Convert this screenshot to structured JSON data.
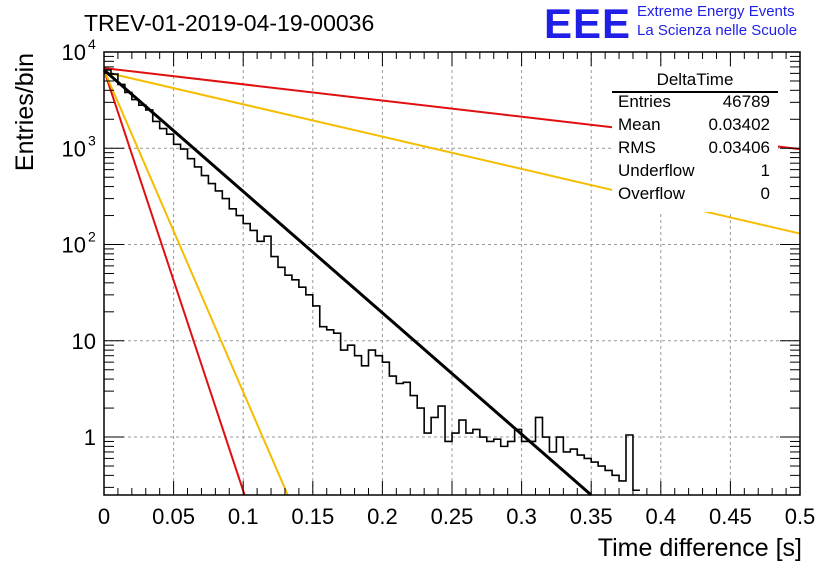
{
  "header": {
    "title": "TREV-01-2019-04-19-00036",
    "logo_text": "EEE",
    "logo_line1": "Extreme Energy Events",
    "logo_line2": "La Scienza nelle Scuole"
  },
  "stats": {
    "title": "DeltaTime",
    "rows": [
      {
        "key": "Entries",
        "value": "46789"
      },
      {
        "key": "Mean",
        "value": "0.03402"
      },
      {
        "key": "RMS",
        "value": "0.03406"
      },
      {
        "key": "Underflow",
        "value": "1"
      },
      {
        "key": "Overflow",
        "value": "0"
      }
    ]
  },
  "colors": {
    "histogram": "#000000",
    "fit": "#000000",
    "red_lines": "#e01010",
    "yellow_lines": "#f5bd00",
    "grid": "#9a9a9a"
  },
  "chart_data": {
    "type": "line",
    "xlabel": "Time difference [s]",
    "ylabel": "Entries/bin",
    "xlim": [
      0,
      0.5
    ],
    "ylim": [
      0.25,
      10000
    ],
    "yscale": "log",
    "grid": true,
    "xticks": [
      "0",
      "0.05",
      "0.1",
      "0.15",
      "0.2",
      "0.25",
      "0.3",
      "0.35",
      "0.4",
      "0.45",
      "0.5"
    ],
    "yticks": [
      {
        "value": 1,
        "label": "1"
      },
      {
        "value": 10,
        "label": "10"
      },
      {
        "value": 100,
        "label": "10",
        "exp": "2"
      },
      {
        "value": 1000,
        "label": "10",
        "exp": "3"
      },
      {
        "value": 10000,
        "label": "10",
        "exp": "4"
      }
    ],
    "histogram": {
      "bin_width": 0.005,
      "values": [
        6500,
        5900,
        4600,
        3800,
        3200,
        2800,
        2500,
        1900,
        1600,
        1400,
        1100,
        980,
        780,
        640,
        520,
        430,
        360,
        300,
        235,
        200,
        165,
        140,
        108,
        122,
        75,
        58,
        48,
        43,
        36,
        30,
        23,
        14,
        13,
        12,
        8,
        9,
        7,
        5.5,
        8,
        7,
        6,
        4.3,
        3.6,
        3.7,
        2.7,
        2,
        1.1,
        1.6,
        2.1,
        0.9,
        1.1,
        1.5,
        1.1,
        1.2,
        1.0,
        0.9,
        0.95,
        0.8,
        0.9,
        1.2,
        0.9,
        0.9,
        1.6,
        1.0,
        0.7,
        1.0,
        0.7,
        0.75,
        0.65,
        0.6,
        0.55,
        0.5,
        0.45,
        0.4,
        0.35,
        1.05,
        0.28
      ]
    },
    "fit_line": {
      "x": [
        0,
        0.35
      ],
      "y": [
        6500,
        0.25
      ]
    },
    "reference_lines": [
      {
        "color": "red",
        "x": [
          0,
          0.5
        ],
        "y": [
          6800,
          980
        ]
      },
      {
        "color": "yellow",
        "x": [
          0,
          0.5
        ],
        "y": [
          6200,
          130
        ]
      },
      {
        "color": "red",
        "x": [
          0,
          0.101
        ],
        "y": [
          6500,
          0.25
        ]
      },
      {
        "color": "yellow",
        "x": [
          0,
          0.132
        ],
        "y": [
          6500,
          0.25
        ]
      }
    ]
  }
}
